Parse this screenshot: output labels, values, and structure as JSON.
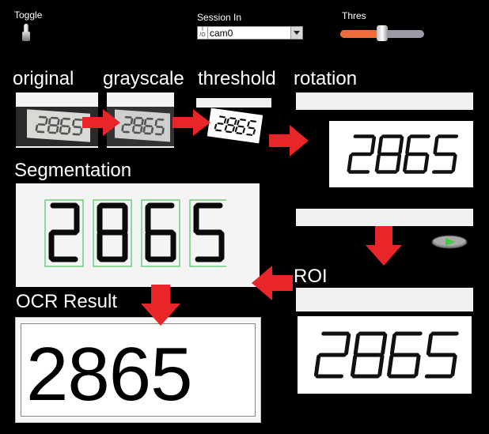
{
  "controls": {
    "toggle_label": "Toggle",
    "session_label": "Session In",
    "session_value": "cam0",
    "session_prefix": "I/O",
    "thres_label": "Thres",
    "thres_level": 0.5
  },
  "stages": {
    "original": "original",
    "grayscale": "grayscale",
    "threshold": "threshold",
    "rotation": "rotation",
    "segmentation": "Segmentation",
    "roi": "ROI",
    "ocr_result": "OCR Result"
  },
  "display_digits": "2865",
  "ocr_value": "2865",
  "colors": {
    "arrow": "#e8262a",
    "slider_fill": "#f06a3a",
    "segment_box": "#2dbb3c",
    "led": "#3ccc3c"
  }
}
